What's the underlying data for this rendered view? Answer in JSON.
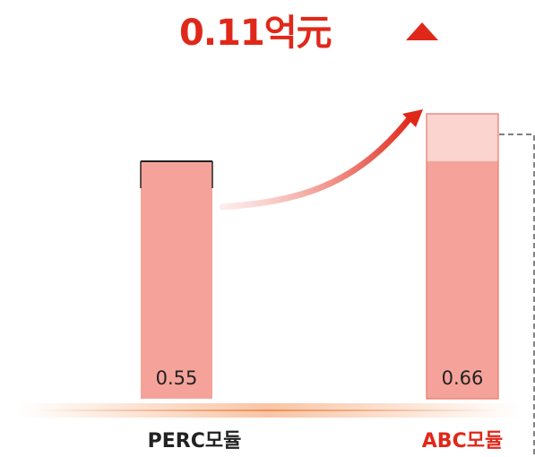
{
  "headline": {
    "text": "0.11억元",
    "arrow_icon": "triangle-up-icon",
    "color": "#e0281a"
  },
  "colors": {
    "bar_fill": "#f5a39a",
    "bar_extra_fill": "#fbd3cf",
    "accent": "#e0281a",
    "baseline_glow": "#f08a4b"
  },
  "chart_data": {
    "type": "bar",
    "categories": [
      "PERC모듈",
      "ABC모듈"
    ],
    "values": [
      0.55,
      0.66
    ],
    "value_labels": [
      "0.55",
      "0.66"
    ],
    "difference": 0.11,
    "difference_label": "0.11억元",
    "title": "",
    "xlabel": "",
    "ylabel": "",
    "ylim": [
      0,
      0.66
    ],
    "category_colors": [
      "#222222",
      "#e0281a"
    ],
    "grid": false,
    "legend": "none"
  }
}
